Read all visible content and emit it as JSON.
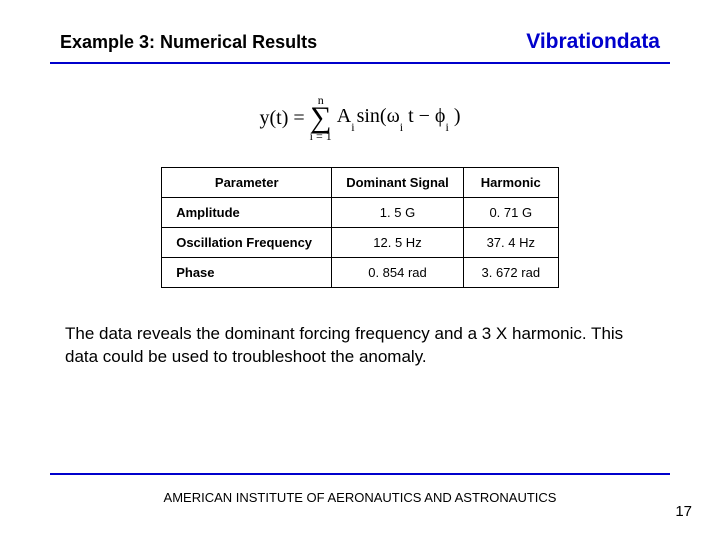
{
  "header": {
    "title": "Example 3:  Numerical Results",
    "brand": "Vibrationdata"
  },
  "colors": {
    "accent": "#0000cc",
    "text": "#000000",
    "background": "#ffffff"
  },
  "equation": {
    "lhs": "y(t) = ",
    "sum_upper": "n",
    "sum_lower": "i = 1",
    "term_A": "A",
    "term_A_sub": "i",
    "sin_open": " sin(ω",
    "omega_sub": "i",
    "t_minus": " t − ϕ",
    "phi_sub": "i",
    "close": " )"
  },
  "table": {
    "columns": [
      "Parameter",
      "Dominant Signal",
      "Harmonic"
    ],
    "rows": [
      [
        "Amplitude",
        "1. 5 G",
        "0. 71 G"
      ],
      [
        "Oscillation Frequency",
        "12. 5 Hz",
        "37. 4 Hz"
      ],
      [
        "Phase",
        "0. 854 rad",
        "3. 672 rad"
      ]
    ],
    "col_align": [
      "left",
      "center",
      "center"
    ],
    "border_color": "#000000",
    "header_fontweight": "bold",
    "cell_fontsize": 13
  },
  "body_text": "The data reveals the dominant forcing frequency and a 3 X harmonic.  This data could be used to troubleshoot the anomaly.",
  "footer": {
    "org": "AMERICAN INSTITUTE OF AERONAUTICS AND ASTRONAUTICS",
    "page": "17"
  }
}
